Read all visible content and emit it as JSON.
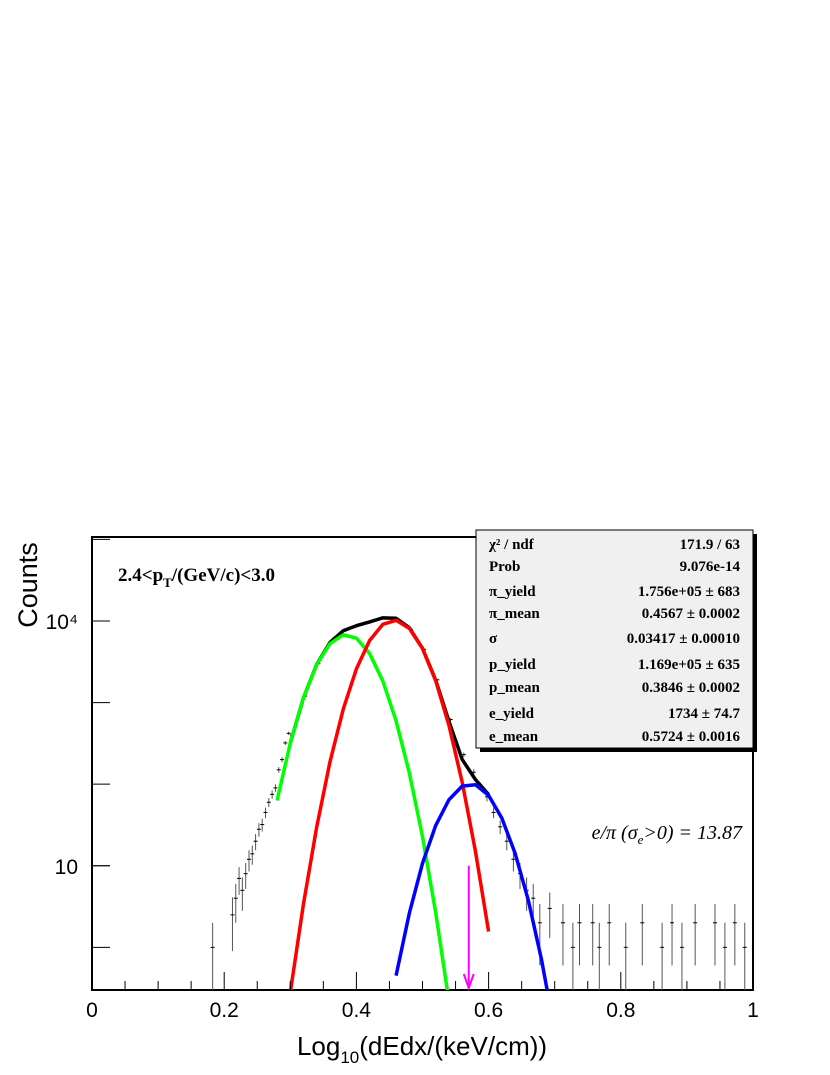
{
  "chart_data": {
    "type": "histfit",
    "log_y": true,
    "xlim": [
      0,
      1
    ],
    "xticks": [
      0,
      0.2,
      0.4,
      0.6,
      0.8,
      1
    ],
    "ylim": [
      0.3,
      107000
    ],
    "yticks": [
      10,
      {
        "value": 10000,
        "label": "10⁴"
      }
    ],
    "x_label": [
      "Log",
      "10",
      "(dEdx/(keV/cm))"
    ],
    "y_label": "Counts",
    "pt_label": [
      "2.4<p",
      "T",
      "/(GeV/c)<3.0"
    ],
    "ratio_label": [
      "e/π (σ",
      "e",
      ">0) = 13.87"
    ],
    "points": {
      "color": "#000000",
      "x": [
        0.1825,
        0.2125,
        0.2175,
        0.2225,
        0.2275,
        0.2325,
        0.2375,
        0.2425,
        0.2475,
        0.2525,
        0.2575,
        0.2625,
        0.2675,
        0.2725,
        0.2775,
        0.2825,
        0.2875,
        0.2925,
        0.2975,
        0.3025,
        0.3225,
        0.3425,
        0.3625,
        0.3825,
        0.4025,
        0.4225,
        0.4425,
        0.4625,
        0.4825,
        0.5025,
        0.5225,
        0.5425,
        0.5625,
        0.5775,
        0.5875,
        0.5975,
        0.6075,
        0.6175,
        0.6275,
        0.6375,
        0.6475,
        0.6575,
        0.6675,
        0.6775,
        0.6925,
        0.7125,
        0.7275,
        0.7375,
        0.7575,
        0.7675,
        0.7825,
        0.8075,
        0.8325,
        0.8625,
        0.8775,
        0.8925,
        0.9125,
        0.9425,
        0.9575,
        0.9725,
        0.9875
      ],
      "values": [
        1,
        2.5,
        4,
        7,
        5,
        8,
        12,
        14,
        20,
        28,
        32,
        45,
        60,
        75,
        90,
        150,
        200,
        320,
        420,
        400,
        1200,
        3000,
        5600,
        7600,
        8800,
        9800,
        10900,
        10600,
        7900,
        4500,
        1900,
        620,
        230,
        140,
        95,
        70,
        45,
        30,
        20,
        12,
        8,
        5,
        4,
        2,
        3,
        2,
        1,
        2,
        2,
        1,
        2,
        1,
        2,
        1,
        2,
        1,
        2,
        2,
        1,
        2,
        1
      ],
      "errors": [
        1,
        1.6,
        2,
        2.6,
        2.2,
        2.8,
        3.5,
        3.7,
        4.5,
        5.3,
        5.7,
        6.7,
        7.7,
        8.7,
        9.5,
        12,
        14,
        18,
        20,
        20,
        35,
        55,
        75,
        87,
        94,
        99,
        104,
        103,
        89,
        67,
        44,
        25,
        15,
        12,
        10,
        8.4,
        6.7,
        5.5,
        4.5,
        3.5,
        2.8,
        2.2,
        2,
        1.4,
        1.7,
        1.4,
        1,
        1.4,
        1.4,
        1,
        1.4,
        1,
        1.4,
        1,
        1.4,
        1,
        1.4,
        1.4,
        1,
        1.4,
        1
      ]
    },
    "fits": [
      {
        "color": "#000000",
        "x": [
          0.3,
          0.32,
          0.34,
          0.36,
          0.38,
          0.4,
          0.42,
          0.44,
          0.46,
          0.48,
          0.5,
          0.52,
          0.54,
          0.56,
          0.58,
          0.6
        ],
        "values": [
          318,
          1145,
          2939,
          5450,
          7583,
          8748,
          9746,
          10930,
          10800,
          8266,
          4625,
          1877,
          589,
          201,
          114,
          74.5
        ]
      },
      {
        "color": "#00ff00",
        "x": [
          0.28,
          0.3,
          0.32,
          0.34,
          0.36,
          0.38,
          0.4,
          0.42,
          0.44,
          0.46,
          0.48,
          0.5,
          0.52,
          0.54,
          0.56
        ],
        "values": [
          63,
          318,
          1142,
          2909,
          5263,
          6758,
          6161,
          3988,
          1833,
          597,
          138,
          22.8,
          2.66,
          0.22,
          0.01
        ]
      },
      {
        "color": "#ff0000",
        "x": [
          0.3,
          0.32,
          0.34,
          0.36,
          0.38,
          0.4,
          0.42,
          0.44,
          0.46,
          0.48,
          0.5,
          0.52,
          0.54,
          0.56,
          0.58,
          0.6
        ],
        "values": [
          0.28,
          3.43,
          30,
          187,
          825,
          2587,
          5758,
          9097,
          10203,
          8125,
          4592,
          1843,
          525,
          106,
          15.2,
          1.56
        ]
      },
      {
        "color": "#0000ff",
        "x": [
          0.46,
          0.48,
          0.5,
          0.52,
          0.54,
          0.56,
          0.58,
          0.6,
          0.62,
          0.64,
          0.66,
          0.68,
          0.7
        ],
        "values": [
          0.45,
          2.6,
          10.7,
          31.2,
          64.4,
          94.6,
          98.5,
          72.9,
          38.3,
          14.3,
          3.8,
          0.71,
          0.095
        ]
      }
    ],
    "cut_arrow": {
      "x": 0.57,
      "from": 10,
      "color": "#ff00ff"
    },
    "stats": [
      [
        "χ² / ndf",
        "171.9 / 63"
      ],
      [
        "Prob",
        "9.076e-14"
      ],
      [
        "π_yield",
        "1.756e+05 ± 683"
      ],
      [
        "π_mean",
        "0.4567 ± 0.0002"
      ],
      [
        "σ",
        "0.03417 ± 0.00010"
      ],
      [
        "p_yield",
        "1.169e+05 ± 635"
      ],
      [
        "p_mean",
        "0.3846 ± 0.0002"
      ],
      [
        "e_yield",
        "1734 ± 74.7"
      ],
      [
        "e_mean",
        "0.5724 ± 0.0016"
      ]
    ]
  }
}
